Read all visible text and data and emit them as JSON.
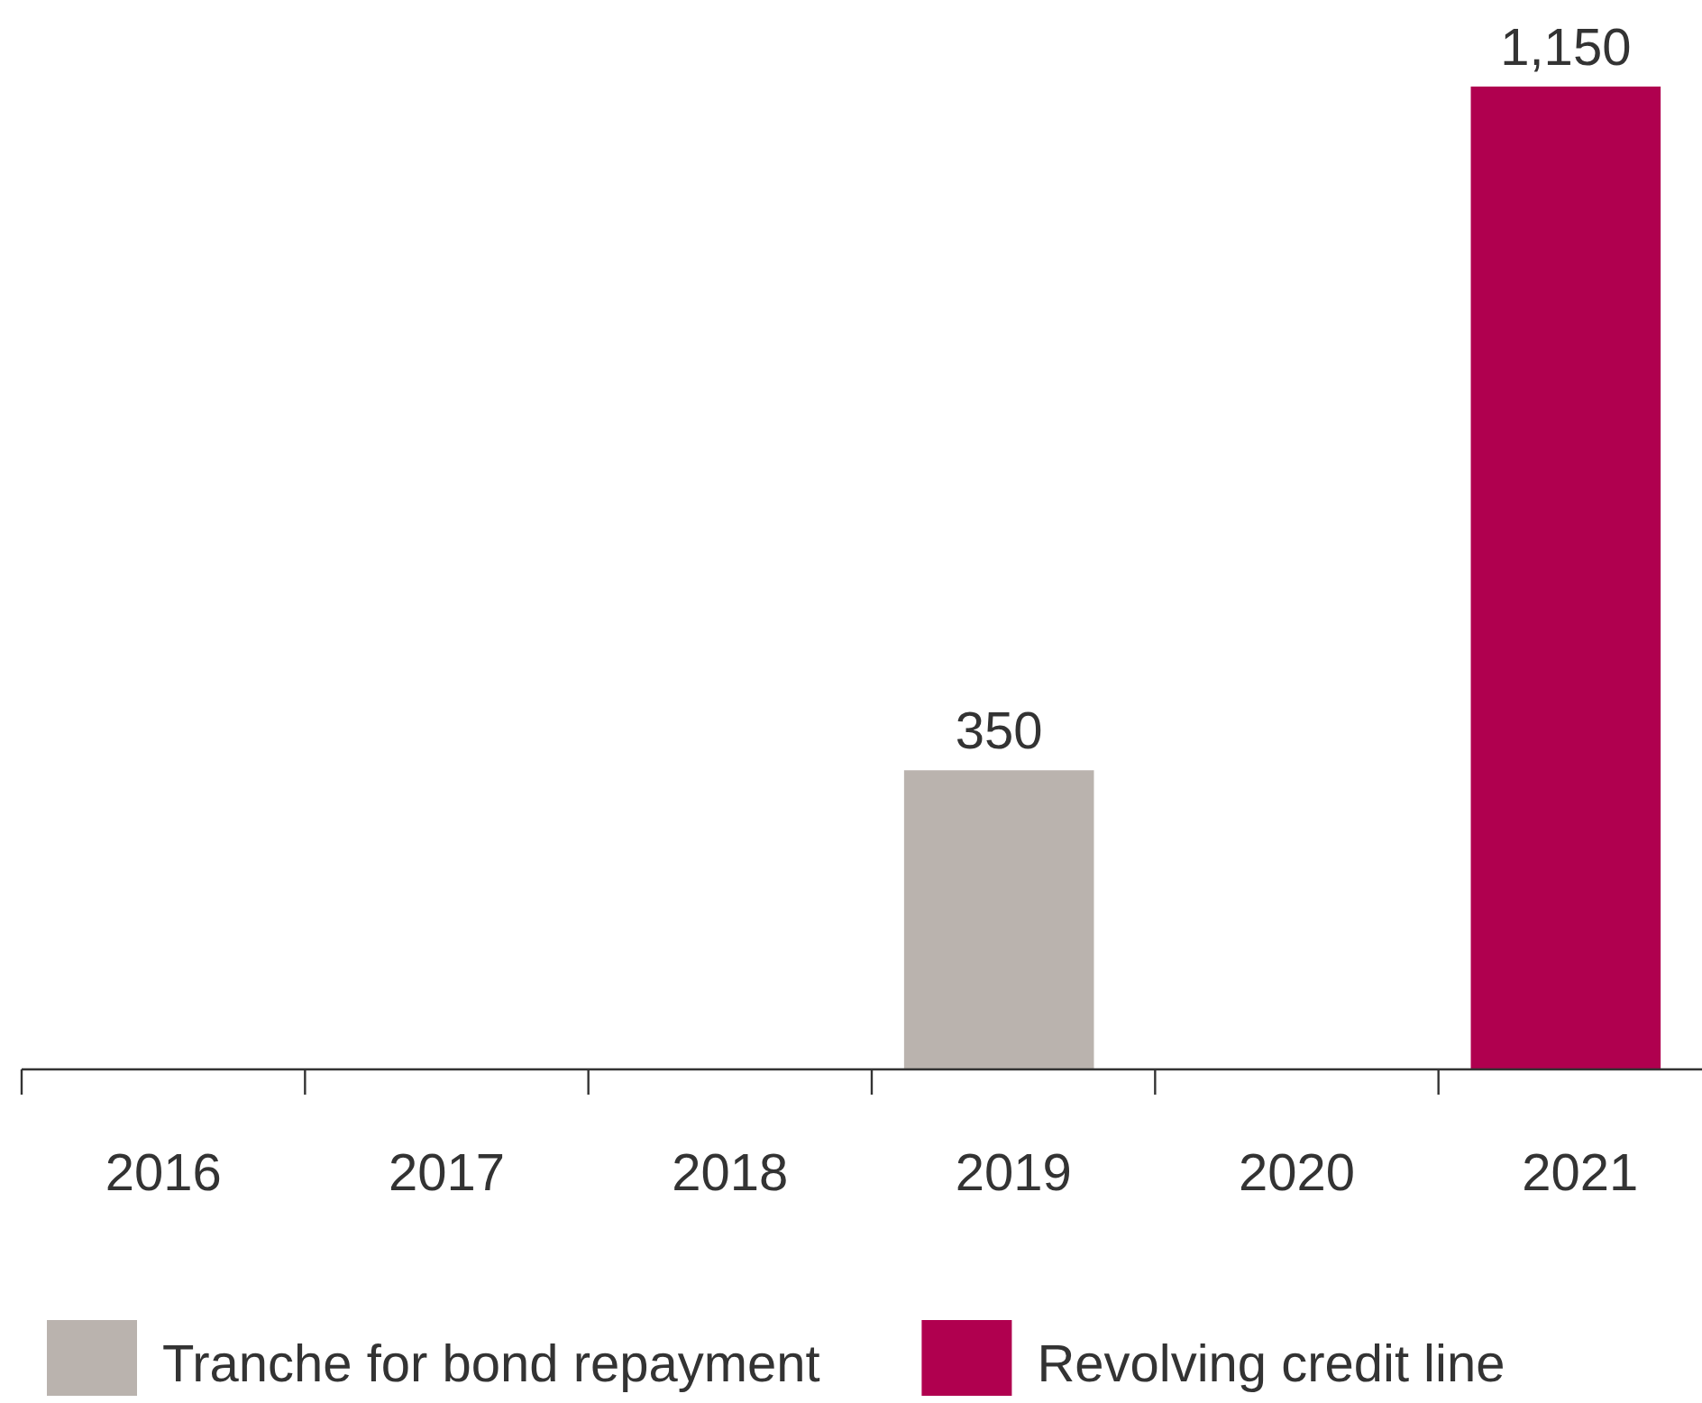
{
  "chart_data": {
    "type": "bar",
    "categories": [
      "2016",
      "2017",
      "2018",
      "2019",
      "2020",
      "2021"
    ],
    "stacked": true,
    "legend": "bottom",
    "series": [
      {
        "name": "Tranche for bond repayment",
        "color": "#bab3ae",
        "values": [
          null,
          null,
          null,
          350,
          null,
          null
        ],
        "value_labels": [
          null,
          null,
          null,
          "350",
          null,
          null
        ]
      },
      {
        "name": "Revolving credit line",
        "color": "#b0004f",
        "values": [
          null,
          null,
          null,
          null,
          null,
          1150
        ],
        "value_labels": [
          null,
          null,
          null,
          null,
          null,
          "1,150"
        ]
      }
    ]
  }
}
